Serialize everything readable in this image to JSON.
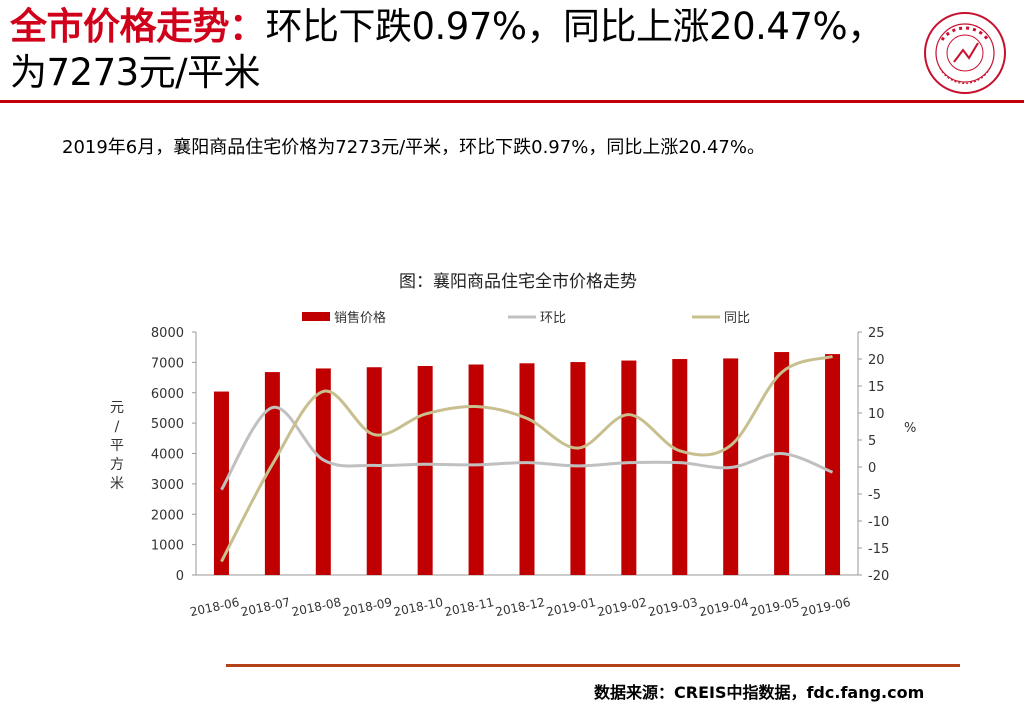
{
  "header": {
    "title_accent": "全市价格走势：",
    "title_rest": "环比下跌0.97%，同比上涨20.47%，为7273元/平米"
  },
  "logo": {
    "text": "中国指数研究院 CHINA INDEX ACADEMY",
    "colors": {
      "ring": "#c8102e"
    }
  },
  "summary": "2019年6月，襄阳商品住宅价格为7273元/平米，环比下跌0.97%，同比上涨20.47%。",
  "chart_data": {
    "type": "bar",
    "title": "图：襄阳商品住宅全市价格走势",
    "categories": [
      "2018-06",
      "2018-07",
      "2018-08",
      "2018-09",
      "2018-10",
      "2018-11",
      "2018-12",
      "2019-01",
      "2019-02",
      "2019-03",
      "2019-04",
      "2019-05",
      "2019-06"
    ],
    "series": [
      {
        "name": "销售价格",
        "type": "bar",
        "axis": "left",
        "color": "#c00000",
        "values": [
          6040,
          6680,
          6800,
          6840,
          6880,
          6930,
          6970,
          7010,
          7060,
          7110,
          7130,
          7340,
          7273
        ]
      },
      {
        "name": "环比",
        "type": "line",
        "axis": "right",
        "color": "#c0c0c0",
        "values": [
          -4.2,
          11.0,
          1.3,
          0.3,
          0.5,
          0.4,
          0.8,
          0.2,
          0.8,
          0.8,
          -0.1,
          2.5,
          -0.97
        ]
      },
      {
        "name": "同比",
        "type": "line",
        "axis": "right",
        "color": "#c8bf8f",
        "values": [
          -17.5,
          0.5,
          14.0,
          6.0,
          9.8,
          11.2,
          9.0,
          3.5,
          9.7,
          3.0,
          4.0,
          17.5,
          20.47
        ]
      }
    ],
    "ylabel": "元/平方米",
    "ylabel_right": "%",
    "ylim": [
      0,
      8000
    ],
    "yticks": [
      0,
      1000,
      2000,
      3000,
      4000,
      5000,
      6000,
      7000,
      8000
    ],
    "ylim_right": [
      -20,
      25
    ],
    "yticks_right": [
      -20,
      -15,
      -10,
      -5,
      0,
      5,
      10,
      15,
      20,
      25
    ],
    "legend_position": "top",
    "grid": false
  },
  "footer": {
    "source": "数据来源：CREIS中指数据，fdc.fang.com"
  }
}
